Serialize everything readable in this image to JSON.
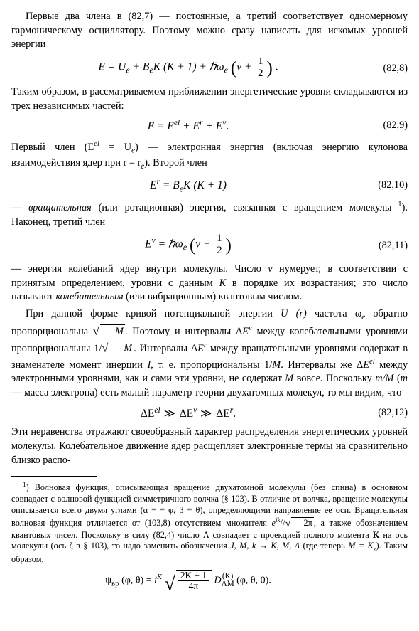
{
  "p1": "Первые два члена в (82,7) — постоянные, а третий соответ­ствует одномерному гармоническому осциллятору. Поэтому можно сразу написать для искомых уровней энергии",
  "eq1": {
    "lhs": "E = U",
    "sub_e1": "e",
    "plus1": " + B",
    "sub_e2": "e",
    "K": "K (K + 1) + ℏω",
    "sub_e3": "e",
    "v_open": " ",
    "v": "v + ",
    "half_n": "1",
    "half_d": "2",
    "num": "(82,8)"
  },
  "p2": "Таким образом, в рассматриваемом приближении энергетические уровни складываются из трех независимых частей:",
  "eq2": {
    "text": "E = E",
    "el": "el",
    "plus1": " + E",
    "r": "r",
    "plus2": " + E",
    "v": "v",
    "dot": ".",
    "num": "(82,9)"
  },
  "p3a": "Первый член (E",
  "p3b": " = U",
  "p3c": ") — электронная энергия (включая энер­гию кулонова взаимодействия ядер при r = r",
  "p3d": "). Второй член",
  "eq3": {
    "text": "E",
    "r": "r",
    "eq": " = B",
    "e": "e",
    "rest": "K (K + 1)",
    "num": "(82,10)"
  },
  "p4a": "— ",
  "p4b": "вращательная",
  "p4c": " (или ротационная) энергия, связанная с враще­нием молекулы",
  "p4d": "). Наконец, третий член",
  "eq4": {
    "E": "E",
    "v": "v",
    "eq": " = ℏω",
    "e": "e",
    "half_n": "1",
    "half_d": "2",
    "num": "(82,11)"
  },
  "p5a": "— энергия колебаний ядер внутри молекулы. Число ",
  "p5b": "v",
  "p5c": " нумерует, в соответствии с принятым определением, уровни с данным ",
  "p5d": "K",
  "p5e": " в порядке их возрастания; это число называют ",
  "p5f": "колебательным",
  "p5g": " (или вибрационным) квантовым числом.",
  "p6a": "При данной форме кривой потенциальной энергии ",
  "p6b": "U (r)",
  "p6c": " ча­стота ω",
  "p6d": " обратно пропорциональна ",
  "p6e": ". Поэтому и интервалы Δ",
  "p6f": " между колебательными уровнями пропорциональны 1/",
  "p6g": ". Интервалы Δ",
  "p6h": " между вращательными уровнями содержат в зна­менателе момент инерции ",
  "p6i": "I",
  "p6j": ", т. е. пропорциональны 1/",
  "p6k": "M",
  "p6l": ". Интер­валы же Δ",
  "p6m": " между электронными уровнями, как и сами эти уровни, не содержат ",
  "p6n": "M",
  "p6o": " вовсе. Поскольку ",
  "p6p": "m/M",
  "p6q": " (",
  "p6r": "m",
  "p6s": " — масса элек­трона) есть малый параметр теории двухатомных молекул, то мы видим, что",
  "eq5": {
    "d1": "ΔE",
    "el": "el",
    "gg1": " ≫ ",
    "d2": "ΔE",
    "v": "v",
    "gg2": " ≫ ",
    "d3": "ΔE",
    "r": "r",
    "dot": ".",
    "num": "(82,12)"
  },
  "p7": "Эти неравенства отражают своеобразный характер распределения энергетических уровней молекулы. Колебательное движение ядер расщепляет электронные термы на сравнительно близко распо-",
  "fn1a": ") Волновая функция, описывающая вращение двухатомной молекулы (без спина) в основном совпадает с волновой функцией симметричного волчка (§ 103). В отличие от волчка, вращение молекулы описывается всего двумя углами (α ≡ ≡ φ, β ≡ θ), определяющими направление ее оси. Вращательная волновая функ­ция отличается от (103,8) отсутствием множителя ",
  "fn1b": ", а также обозначе­нием квантовых чисел. Поскольку в силу (82,4) число Λ совпадает с проекцией полного момента ",
  "fn1c": "K",
  "fn1d": " на ось молекулы (ось ζ в § 103), то надо заменить обо­значения ",
  "fn1e": "J, M, k → K, M, Λ",
  "fn1f": " (где теперь ",
  "fn1g": "M = K",
  "fn1h": "). Таким образом,",
  "fneq": {
    "psi": "ψ",
    "sub": "вр",
    "args": " (φ, θ) = ",
    "i": "i",
    "K": "K",
    "frac_n": "2K + 1",
    "frac_d": "4π",
    "D": " D",
    "Dsup": "(K)",
    "Dsub": "ΛM",
    "args2": " (φ, θ, 0)."
  },
  "sym": {
    "M": "M",
    "sqrtM": "M",
    "el": "el",
    "r": "r",
    "v": "v",
    "e": "e",
    "eikgamma": "e",
    "ikgamma": "ikγ",
    "slash": "/",
    "twopi": "2π",
    "z": "z"
  }
}
